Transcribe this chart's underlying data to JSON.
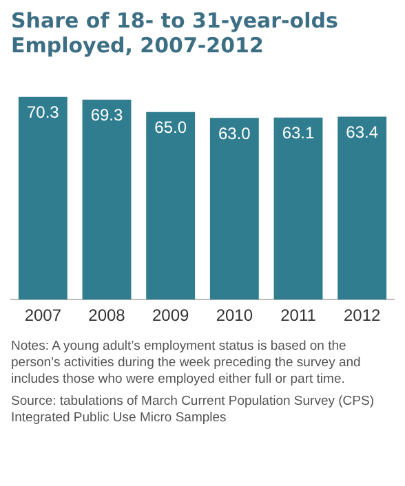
{
  "chart_data": {
    "type": "bar",
    "title": "Share of 18- to 31-year-olds Employed, 2007-2012",
    "categories": [
      "2007",
      "2008",
      "2009",
      "2010",
      "2011",
      "2012"
    ],
    "values": [
      70.3,
      69.3,
      65.0,
      63.0,
      63.1,
      63.4
    ],
    "value_labels": [
      "70.3",
      "69.3",
      "65.0",
      "63.0",
      "63.1",
      "63.4"
    ],
    "color": "#2f7d8e",
    "grid": false,
    "legend": false,
    "tick_labels": "x",
    "annotations": [
      "Notes: A young adult’s employment status is based on the person’s activities during the week preceding the survey and includes those who were employed either full or part time.",
      "Source: tabulations of March Current Population Survey (CPS) Integrated Public Use Micro Samples"
    ]
  }
}
